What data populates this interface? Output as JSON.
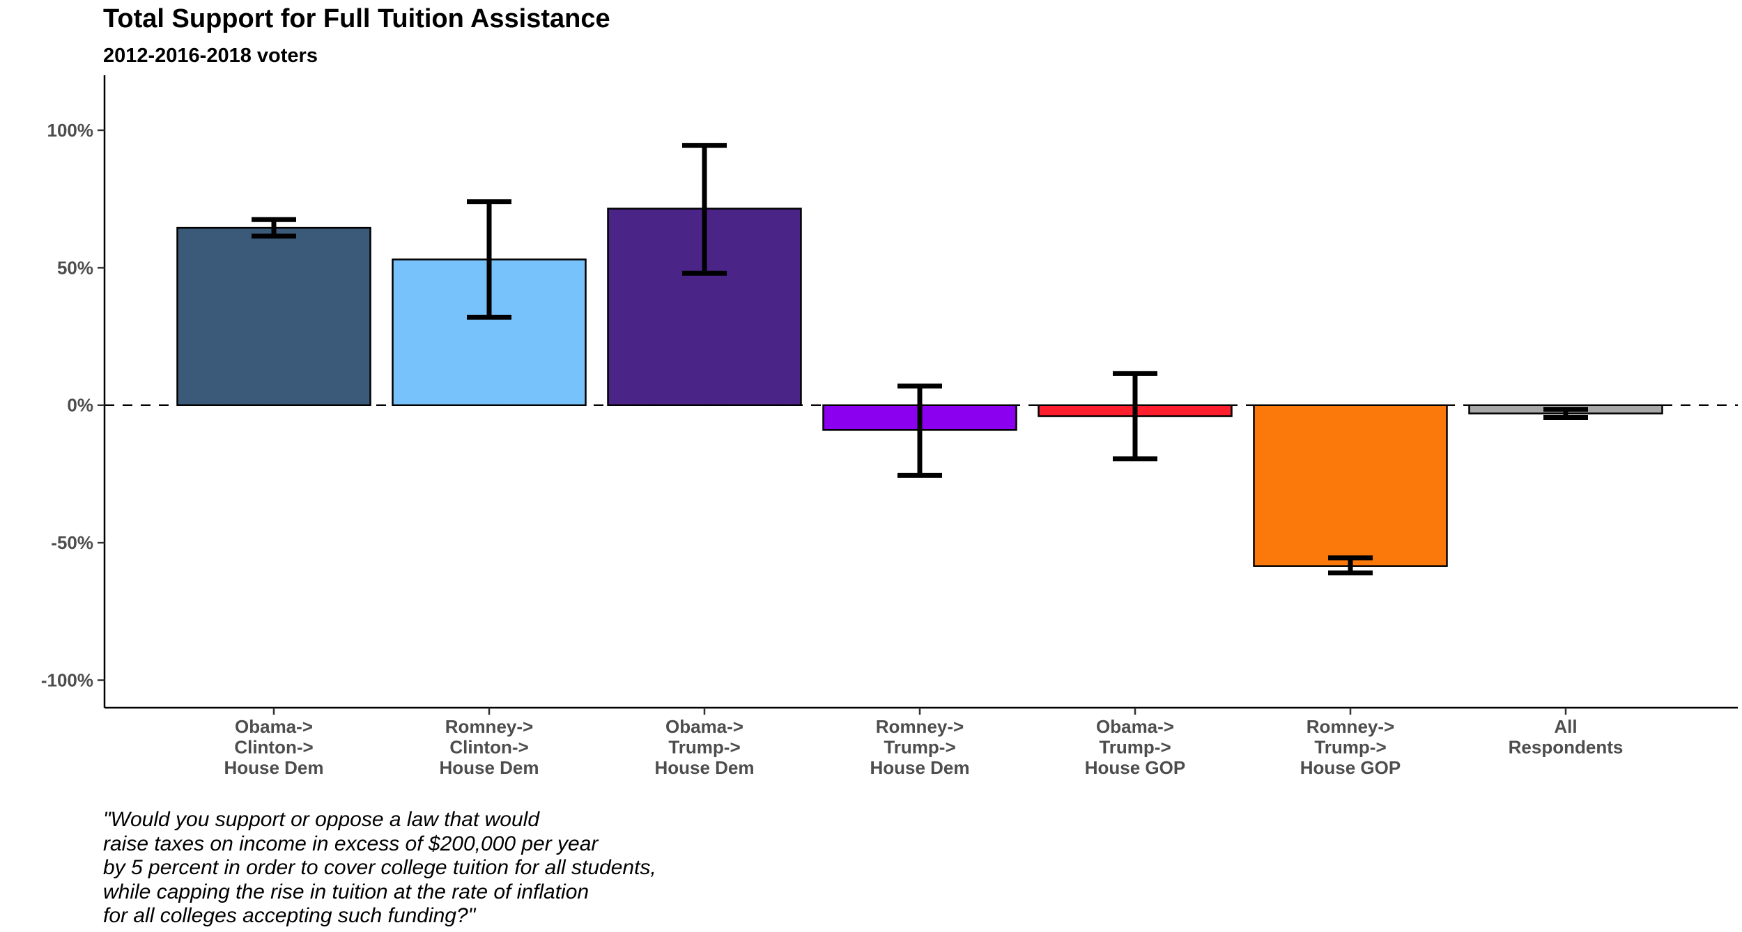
{
  "title": "Total Support for Full Tuition Assistance",
  "subtitle": "2012-2016-2018 voters",
  "caption_lines": [
    "\"Would you support or oppose a law that would",
    "raise taxes on income in excess of $200,000 per year",
    "by 5 percent in order to cover college tuition for all students,",
    "while capping the rise in tuition at the rate of inflation",
    "for all colleges accepting such funding?\""
  ],
  "chart_data": {
    "type": "bar",
    "title": "Total Support for Full Tuition Assistance",
    "subtitle": "2012-2016-2018 voters",
    "xlabel": "",
    "ylabel": "",
    "ylim": [
      -110,
      120
    ],
    "yticks": [
      100,
      50,
      0,
      -50,
      -100
    ],
    "ytick_labels": [
      "100%",
      "50%",
      "0%",
      "-50%",
      "-100%"
    ],
    "reference_line": {
      "y": 0,
      "style": "dashed"
    },
    "grid": false,
    "legend": "none",
    "categories": [
      [
        "Obama->",
        "Clinton->",
        "House Dem"
      ],
      [
        "Romney->",
        "Clinton->",
        "House Dem"
      ],
      [
        "Obama->",
        "Trump->",
        "House Dem"
      ],
      [
        "Romney->",
        "Trump->",
        "House Dem"
      ],
      [
        "Obama->",
        "Trump->",
        "House GOP"
      ],
      [
        "Romney->",
        "Trump->",
        "House GOP"
      ],
      [
        "All",
        "Respondents"
      ]
    ],
    "values": [
      64.5,
      53,
      71.5,
      -9,
      -4,
      -58.5,
      -3
    ],
    "error_low": [
      61.5,
      32,
      48,
      -25.5,
      -19.5,
      -61,
      -4.5
    ],
    "error_high": [
      67.5,
      74,
      94.5,
      7,
      11.5,
      -55.5,
      -1.5
    ],
    "colors": [
      "#3b5a7a",
      "#78c2fc",
      "#4a2587",
      "#8b00ee",
      "#ff1e2d",
      "#fb780b",
      "#a8a8a8"
    ]
  }
}
